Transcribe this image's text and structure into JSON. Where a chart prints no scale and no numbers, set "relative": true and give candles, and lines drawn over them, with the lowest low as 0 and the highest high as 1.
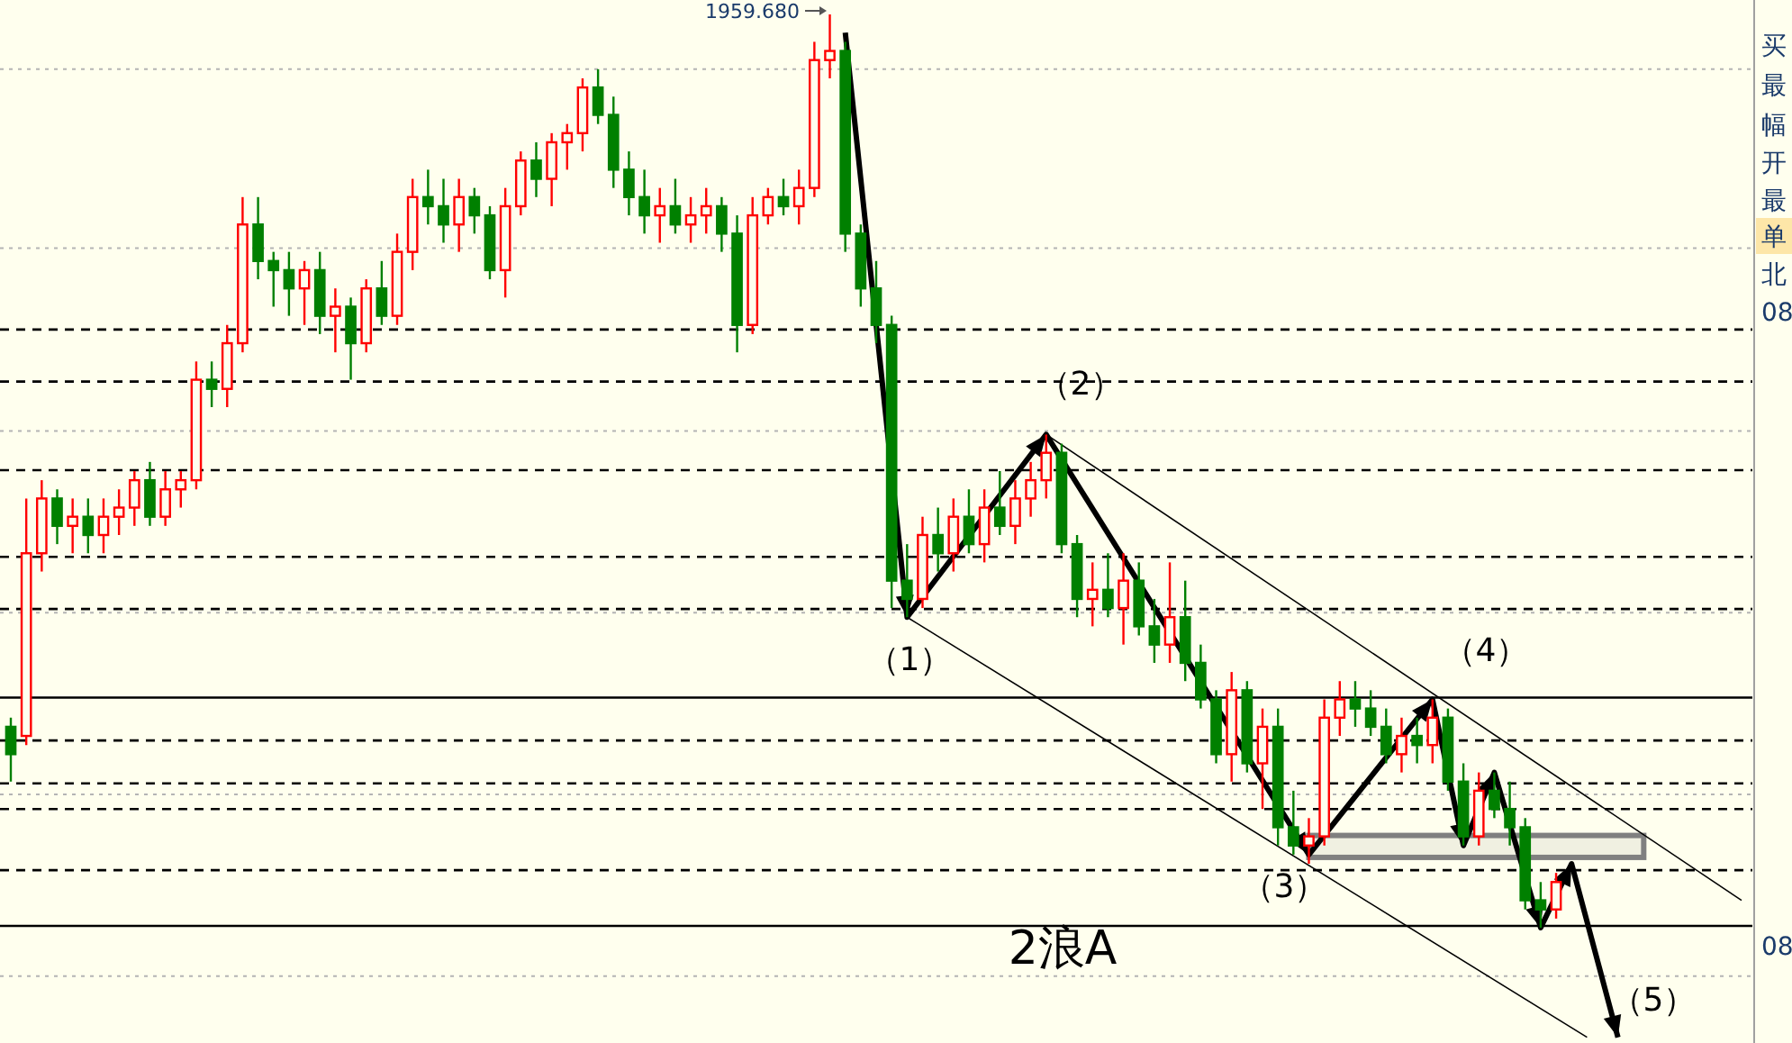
{
  "chart_data": {
    "type": "candlestick",
    "relative": true,
    "categories": [
      null,
      null,
      null,
      null,
      null,
      null,
      null,
      null,
      null,
      null,
      null,
      null,
      null,
      null,
      null,
      null,
      null,
      null,
      null,
      null,
      null,
      null,
      null,
      null,
      null,
      null,
      null,
      null,
      null,
      null,
      null,
      null,
      null,
      null,
      null,
      null,
      null,
      null,
      null,
      null,
      null,
      null,
      null,
      null,
      null,
      null,
      null,
      null,
      null,
      null,
      null,
      null,
      null,
      null,
      null,
      null,
      null,
      null,
      null,
      null,
      null,
      null,
      null,
      null,
      null,
      null,
      null,
      null,
      null,
      null,
      null,
      null,
      null,
      null,
      null,
      null,
      null,
      null,
      null,
      null,
      null,
      null,
      null,
      null,
      null,
      null,
      null,
      null,
      null,
      null,
      null,
      null,
      null,
      null,
      null,
      null,
      null,
      null,
      null,
      null,
      null,
      null,
      null,
      null,
      null,
      null,
      null,
      null,
      null,
      null,
      null,
      null,
      null
    ],
    "ohlc": [
      [
        0.22,
        0.23,
        0.16,
        0.19
      ],
      [
        0.21,
        0.47,
        0.2,
        0.41
      ],
      [
        0.41,
        0.49,
        0.39,
        0.47
      ],
      [
        0.47,
        0.48,
        0.42,
        0.44
      ],
      [
        0.44,
        0.47,
        0.41,
        0.45
      ],
      [
        0.45,
        0.47,
        0.41,
        0.43
      ],
      [
        0.43,
        0.47,
        0.41,
        0.45
      ],
      [
        0.45,
        0.48,
        0.43,
        0.46
      ],
      [
        0.46,
        0.5,
        0.44,
        0.49
      ],
      [
        0.49,
        0.51,
        0.44,
        0.45
      ],
      [
        0.45,
        0.5,
        0.44,
        0.48
      ],
      [
        0.48,
        0.5,
        0.46,
        0.49
      ],
      [
        0.49,
        0.62,
        0.48,
        0.6
      ],
      [
        0.6,
        0.62,
        0.57,
        0.59
      ],
      [
        0.59,
        0.66,
        0.57,
        0.64
      ],
      [
        0.64,
        0.8,
        0.63,
        0.77
      ],
      [
        0.77,
        0.8,
        0.71,
        0.73
      ],
      [
        0.73,
        0.74,
        0.68,
        0.72
      ],
      [
        0.72,
        0.74,
        0.67,
        0.7
      ],
      [
        0.7,
        0.73,
        0.66,
        0.72
      ],
      [
        0.72,
        0.74,
        0.65,
        0.67
      ],
      [
        0.67,
        0.7,
        0.63,
        0.68
      ],
      [
        0.68,
        0.69,
        0.6,
        0.64
      ],
      [
        0.64,
        0.71,
        0.63,
        0.7
      ],
      [
        0.7,
        0.73,
        0.66,
        0.67
      ],
      [
        0.67,
        0.76,
        0.66,
        0.74
      ],
      [
        0.74,
        0.82,
        0.72,
        0.8
      ],
      [
        0.8,
        0.83,
        0.77,
        0.79
      ],
      [
        0.79,
        0.82,
        0.75,
        0.77
      ],
      [
        0.77,
        0.82,
        0.74,
        0.8
      ],
      [
        0.8,
        0.81,
        0.76,
        0.78
      ],
      [
        0.78,
        0.79,
        0.71,
        0.72
      ],
      [
        0.72,
        0.81,
        0.69,
        0.79
      ],
      [
        0.79,
        0.85,
        0.78,
        0.84
      ],
      [
        0.84,
        0.86,
        0.8,
        0.82
      ],
      [
        0.82,
        0.87,
        0.79,
        0.86
      ],
      [
        0.86,
        0.88,
        0.83,
        0.87
      ],
      [
        0.87,
        0.93,
        0.85,
        0.92
      ],
      [
        0.92,
        0.94,
        0.88,
        0.89
      ],
      [
        0.89,
        0.91,
        0.81,
        0.83
      ],
      [
        0.83,
        0.85,
        0.78,
        0.8
      ],
      [
        0.8,
        0.83,
        0.76,
        0.78
      ],
      [
        0.78,
        0.81,
        0.75,
        0.79
      ],
      [
        0.79,
        0.82,
        0.76,
        0.77
      ],
      [
        0.77,
        0.8,
        0.75,
        0.78
      ],
      [
        0.78,
        0.81,
        0.76,
        0.79
      ],
      [
        0.79,
        0.8,
        0.74,
        0.76
      ],
      [
        0.76,
        0.78,
        0.63,
        0.66
      ],
      [
        0.66,
        0.8,
        0.65,
        0.78
      ],
      [
        0.78,
        0.81,
        0.77,
        0.8
      ],
      [
        0.8,
        0.82,
        0.78,
        0.79
      ],
      [
        0.79,
        0.83,
        0.77,
        0.81
      ],
      [
        0.81,
        0.97,
        0.8,
        0.95
      ],
      [
        0.95,
        1.0,
        0.93,
        0.96
      ],
      [
        0.96,
        0.97,
        0.74,
        0.76
      ],
      [
        0.76,
        0.77,
        0.68,
        0.7
      ],
      [
        0.7,
        0.73,
        0.64,
        0.66
      ],
      [
        0.66,
        0.67,
        0.35,
        0.38
      ],
      [
        0.38,
        0.42,
        0.34,
        0.36
      ],
      [
        0.36,
        0.45,
        0.35,
        0.43
      ],
      [
        0.43,
        0.46,
        0.39,
        0.41
      ],
      [
        0.41,
        0.47,
        0.39,
        0.45
      ],
      [
        0.45,
        0.48,
        0.41,
        0.42
      ],
      [
        0.42,
        0.48,
        0.4,
        0.46
      ],
      [
        0.46,
        0.5,
        0.43,
        0.44
      ],
      [
        0.44,
        0.49,
        0.42,
        0.47
      ],
      [
        0.47,
        0.51,
        0.45,
        0.49
      ],
      [
        0.49,
        0.54,
        0.47,
        0.52
      ],
      [
        0.52,
        0.53,
        0.41,
        0.42
      ],
      [
        0.42,
        0.43,
        0.34,
        0.36
      ],
      [
        0.36,
        0.4,
        0.33,
        0.37
      ],
      [
        0.37,
        0.41,
        0.34,
        0.35
      ],
      [
        0.35,
        0.41,
        0.31,
        0.38
      ],
      [
        0.38,
        0.4,
        0.32,
        0.33
      ],
      [
        0.33,
        0.36,
        0.29,
        0.31
      ],
      [
        0.31,
        0.4,
        0.29,
        0.34
      ],
      [
        0.34,
        0.38,
        0.27,
        0.29
      ],
      [
        0.29,
        0.31,
        0.24,
        0.25
      ],
      [
        0.25,
        0.26,
        0.18,
        0.19
      ],
      [
        0.19,
        0.28,
        0.16,
        0.26
      ],
      [
        0.26,
        0.27,
        0.17,
        0.18
      ],
      [
        0.18,
        0.24,
        0.13,
        0.22
      ],
      [
        0.22,
        0.24,
        0.09,
        0.11
      ],
      [
        0.11,
        0.15,
        0.08,
        0.09
      ],
      [
        0.09,
        0.12,
        0.07,
        0.1
      ],
      [
        0.1,
        0.25,
        0.09,
        0.23
      ],
      [
        0.23,
        0.27,
        0.21,
        0.25
      ],
      [
        0.25,
        0.27,
        0.22,
        0.24
      ],
      [
        0.24,
        0.26,
        0.21,
        0.22
      ],
      [
        0.22,
        0.24,
        0.18,
        0.19
      ],
      [
        0.19,
        0.23,
        0.17,
        0.21
      ],
      [
        0.21,
        0.23,
        0.18,
        0.2
      ],
      [
        0.2,
        0.25,
        0.18,
        0.23
      ],
      [
        0.23,
        0.24,
        0.15,
        0.16
      ],
      [
        0.16,
        0.18,
        0.09,
        0.1
      ],
      [
        0.1,
        0.17,
        0.09,
        0.15
      ],
      [
        0.15,
        0.17,
        0.12,
        0.13
      ],
      [
        0.13,
        0.16,
        0.09,
        0.11
      ],
      [
        0.11,
        0.12,
        0.02,
        0.03
      ],
      [
        0.03,
        0.05,
        0.0,
        0.02
      ],
      [
        0.02,
        0.06,
        0.01,
        0.05
      ],
      null,
      null,
      null,
      null,
      null,
      null,
      null,
      null,
      null,
      null,
      null,
      null
    ],
    "series": [
      {
        "type": "line",
        "color": "#000000",
        "values": [
          null,
          null,
          null,
          null,
          null,
          null,
          null,
          null,
          null,
          null,
          null,
          null,
          null,
          null,
          null,
          null,
          null,
          null,
          null,
          null,
          null,
          null,
          null,
          null,
          null,
          null,
          null,
          null,
          null,
          null,
          null,
          null,
          null,
          null,
          null,
          null,
          null,
          null,
          null,
          null,
          null,
          null,
          null,
          null,
          null,
          null,
          null,
          null,
          null,
          null,
          null,
          null,
          null,
          null,
          0.98,
          null,
          null,
          null,
          0.34,
          null,
          null,
          null,
          null,
          null,
          null,
          null,
          null,
          0.54,
          null,
          null,
          null,
          null,
          null,
          null,
          null,
          null,
          null,
          null,
          null,
          null,
          null,
          null,
          null,
          null,
          0.08,
          null,
          null,
          null,
          null,
          null,
          null,
          null,
          0.25,
          null,
          0.09,
          null,
          0.17,
          null,
          null,
          0.0,
          null,
          0.07,
          null,
          null,
          -0.12,
          null,
          null,
          null,
          null,
          null,
          null,
          null,
          null
        ]
      },
      {
        "type": "line",
        "color": "#000000",
        "values": [
          null,
          null,
          null,
          null,
          null,
          null,
          null,
          null,
          null,
          null,
          null,
          null,
          null,
          null,
          null,
          null,
          null,
          null,
          null,
          null,
          null,
          null,
          null,
          null,
          null,
          null,
          null,
          null,
          null,
          null,
          null,
          null,
          null,
          null,
          null,
          null,
          null,
          null,
          null,
          null,
          null,
          null,
          null,
          null,
          null,
          null,
          null,
          null,
          null,
          null,
          null,
          null,
          null,
          null,
          null,
          null,
          null,
          null,
          null,
          null,
          null,
          null,
          null,
          null,
          null,
          null,
          null,
          0.54,
          null,
          null,
          null,
          null,
          null,
          null,
          null,
          null,
          null,
          null,
          null,
          null,
          null,
          null,
          null,
          null,
          null,
          null,
          null,
          null,
          null,
          null,
          null,
          null,
          null,
          null,
          null,
          null,
          null,
          null,
          null,
          null,
          null,
          null,
          null,
          null,
          null,
          null,
          null,
          null,
          null,
          null,
          null,
          null,
          0.03
        ]
      },
      {
        "type": "line",
        "color": "#000000",
        "values": [
          null,
          null,
          null,
          null,
          null,
          null,
          null,
          null,
          null,
          null,
          null,
          null,
          null,
          null,
          null,
          null,
          null,
          null,
          null,
          null,
          null,
          null,
          null,
          null,
          null,
          null,
          null,
          null,
          null,
          null,
          null,
          null,
          null,
          null,
          null,
          null,
          null,
          null,
          null,
          null,
          null,
          null,
          null,
          null,
          null,
          null,
          null,
          null,
          null,
          null,
          null,
          null,
          null,
          null,
          null,
          null,
          null,
          null,
          0.34,
          null,
          null,
          null,
          null,
          null,
          null,
          null,
          null,
          null,
          null,
          null,
          null,
          null,
          null,
          null,
          null,
          null,
          null,
          null,
          null,
          null,
          null,
          null,
          null,
          null,
          null,
          null,
          null,
          null,
          null,
          null,
          null,
          null,
          null,
          null,
          null,
          null,
          null,
          null,
          null,
          null,
          null,
          null,
          -0.12,
          null,
          null,
          null,
          null,
          null,
          null,
          null,
          null,
          null,
          null
        ]
      }
    ],
    "ref_lines": [
      {
        "axis": "y",
        "value": 0.94,
        "color": "#b4b4b4",
        "line_style": "dotted"
      },
      {
        "axis": "y",
        "value": 0.744,
        "color": "#b4b4b4",
        "line_style": "dotted"
      },
      {
        "axis": "y",
        "value": 0.544,
        "color": "#b4b4b4",
        "line_style": "dotted"
      },
      {
        "axis": "y",
        "value": 0.345,
        "color": "#b4b4b4",
        "line_style": "dotted"
      },
      {
        "axis": "y",
        "value": 0.146,
        "color": "#b4b4b4",
        "line_style": "dotted"
      },
      {
        "axis": "y",
        "value": -0.053,
        "color": "#b4b4b4",
        "line_style": "dotted"
      },
      {
        "axis": "y",
        "value": 0.655,
        "color": "#000000",
        "line_style": "dashed"
      },
      {
        "axis": "y",
        "value": 0.598,
        "color": "#000000",
        "line_style": "dashed"
      },
      {
        "axis": "y",
        "value": 0.501,
        "color": "#000000",
        "line_style": "dashed"
      },
      {
        "axis": "y",
        "value": 0.406,
        "color": "#000000",
        "line_style": "dashed"
      },
      {
        "axis": "y",
        "value": 0.349,
        "color": "#000000",
        "line_style": "dashed"
      },
      {
        "axis": "y",
        "value": 0.205,
        "color": "#000000",
        "line_style": "dashed"
      },
      {
        "axis": "y",
        "value": 0.158,
        "color": "#000000",
        "line_style": "dashed"
      },
      {
        "axis": "y",
        "value": 0.13,
        "color": "#000000",
        "line_style": "dashed"
      },
      {
        "axis": "y",
        "value": 0.063,
        "color": "#000000",
        "line_style": "dashed"
      },
      {
        "axis": "y",
        "value": 0.252,
        "color": "#000000",
        "line_style": "solid"
      },
      {
        "axis": "y",
        "value": 0.002,
        "color": "#000000",
        "line_style": "solid"
      }
    ],
    "bands": [
      {
        "axis": "y",
        "from": 0.077,
        "to": 0.101,
        "color": "#808080"
      }
    ],
    "annotations": [
      "1959.680",
      "（1）",
      "（2）",
      "（3）",
      "（4）",
      "（5）",
      "2浪A",
      "买",
      "最",
      "幅",
      "开",
      "最",
      "单",
      "北",
      "08",
      "08"
    ]
  }
}
